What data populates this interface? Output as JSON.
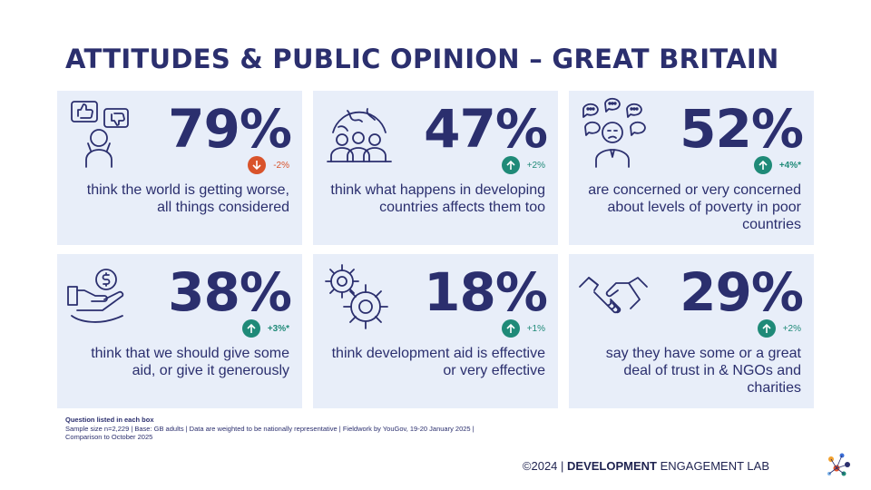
{
  "title": "ATTITUDES & PUBLIC OPINION – GREAT BRITAIN",
  "cards": [
    {
      "percent": "79%",
      "change": "-2%",
      "direction": "down",
      "desc": "think the world is getting worse, all things considered",
      "icon": "thumbs-feedback-person-icon"
    },
    {
      "percent": "47%",
      "change": "+2%",
      "direction": "up",
      "desc": "think what happens in developing countries affects them too",
      "icon": "globe-people-icon"
    },
    {
      "percent": "52%",
      "change": "+4%*",
      "direction": "up",
      "desc": "are concerned or very concerned about levels of poverty in poor countries",
      "icon": "worried-person-speech-icon"
    },
    {
      "percent": "38%",
      "change": "+3%*",
      "direction": "up",
      "desc": "think that we should give some aid, or give it generously",
      "icon": "hand-giving-money-icon"
    },
    {
      "percent": "18%",
      "change": "+1%",
      "direction": "up",
      "desc": "think development aid is effective or very effective",
      "icon": "gears-icon"
    },
    {
      "percent": "29%",
      "change": "+2%",
      "direction": "up",
      "desc": "say they have some or a great deal of trust in & NGOs and charities",
      "icon": "handshake-icon"
    }
  ],
  "footnote": {
    "question": "Question listed in each box",
    "line1": "Sample size n=2,229 | Base: GB adults | Data are weighted to be nationally representative | Fieldwork by YouGov, 19-20 January 2025 |",
    "line2": "Comparison to October 2025"
  },
  "copyright": {
    "prefix": "©2024 | ",
    "bold": "DEVELOPMENT",
    "rest": " ENGAGEMENT LAB"
  },
  "colors": {
    "navy": "#2b2f6e",
    "card": "#e8eef9",
    "up": "#1f8a78",
    "down": "#d9532b"
  }
}
